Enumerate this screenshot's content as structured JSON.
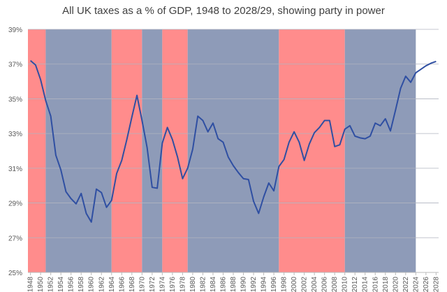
{
  "chart_data": {
    "type": "line",
    "title": "All UK taxes as a % of GDP, 1948 to 2028/29, showing party in power",
    "x": [
      1948,
      1949,
      1950,
      1951,
      1952,
      1953,
      1954,
      1955,
      1956,
      1957,
      1958,
      1959,
      1960,
      1961,
      1962,
      1963,
      1964,
      1965,
      1966,
      1967,
      1968,
      1969,
      1970,
      1971,
      1972,
      1973,
      1974,
      1975,
      1976,
      1977,
      1978,
      1979,
      1980,
      1981,
      1982,
      1983,
      1984,
      1985,
      1986,
      1987,
      1988,
      1989,
      1990,
      1991,
      1992,
      1993,
      1994,
      1995,
      1996,
      1997,
      1998,
      1999,
      2000,
      2001,
      2002,
      2003,
      2004,
      2005,
      2006,
      2007,
      2008,
      2009,
      2010,
      2011,
      2012,
      2013,
      2014,
      2015,
      2016,
      2017,
      2018,
      2019,
      2020,
      2021,
      2022,
      2023,
      2024,
      2025,
      2026,
      2027,
      2028
    ],
    "series": [
      {
        "color": "#2f4fa2",
        "values": [
          37.2,
          36.95,
          36.1,
          34.9,
          34.0,
          31.75,
          30.9,
          29.65,
          29.25,
          28.95,
          29.55,
          28.4,
          27.9,
          29.8,
          29.6,
          28.75,
          29.15,
          30.7,
          31.45,
          32.65,
          33.95,
          35.2,
          33.75,
          32.2,
          29.9,
          29.85,
          32.45,
          33.35,
          32.65,
          31.65,
          30.4,
          31.0,
          32.1,
          34.0,
          33.75,
          33.1,
          33.6,
          32.7,
          32.5,
          31.65,
          31.15,
          30.75,
          30.4,
          30.35,
          29.1,
          28.4,
          29.35,
          30.15,
          29.7,
          31.1,
          31.5,
          32.5,
          33.1,
          32.5,
          31.45,
          32.4,
          33.05,
          33.35,
          33.75,
          33.75,
          32.25,
          32.35,
          33.25,
          33.45,
          32.85,
          32.75,
          32.7,
          32.85,
          33.6,
          33.45,
          33.85,
          33.15,
          34.35,
          35.6,
          36.3,
          35.95,
          36.5,
          36.7,
          36.9,
          37.05,
          37.15
        ]
      }
    ],
    "periods": [
      {
        "start": 1947.5,
        "end": 1951,
        "color": "#ff8c8c"
      },
      {
        "start": 1951,
        "end": 1964,
        "color": "#8e9bb8"
      },
      {
        "start": 1964,
        "end": 1970,
        "color": "#ff8c8c"
      },
      {
        "start": 1970,
        "end": 1974,
        "color": "#8e9bb8"
      },
      {
        "start": 1974,
        "end": 1979,
        "color": "#ff8c8c"
      },
      {
        "start": 1979,
        "end": 1997,
        "color": "#8e9bb8"
      },
      {
        "start": 1997,
        "end": 2010,
        "color": "#ff8c8c"
      },
      {
        "start": 2010,
        "end": 2024,
        "color": "#8e9bb8"
      }
    ],
    "xlim": [
      1947.5,
      2028.5
    ],
    "xticks": [
      1948,
      1950,
      1952,
      1954,
      1956,
      1958,
      1960,
      1962,
      1964,
      1966,
      1968,
      1970,
      1972,
      1974,
      1976,
      1978,
      1980,
      1982,
      1984,
      1986,
      1988,
      1990,
      1992,
      1994,
      1996,
      1998,
      2000,
      2002,
      2004,
      2006,
      2008,
      2010,
      2012,
      2014,
      2016,
      2018,
      2020,
      2022,
      2024,
      2026,
      2028
    ],
    "ylim": [
      25,
      39
    ],
    "yticks": [
      {
        "value": 25,
        "label": "25%"
      },
      {
        "value": 27,
        "label": "27%"
      },
      {
        "value": 29,
        "label": "29%"
      },
      {
        "value": 31,
        "label": "31%"
      },
      {
        "value": 33,
        "label": "33%"
      },
      {
        "value": 35,
        "label": "35%"
      },
      {
        "value": 37,
        "label": "37%"
      },
      {
        "value": 39,
        "label": "39%"
      }
    ],
    "grid": true
  }
}
